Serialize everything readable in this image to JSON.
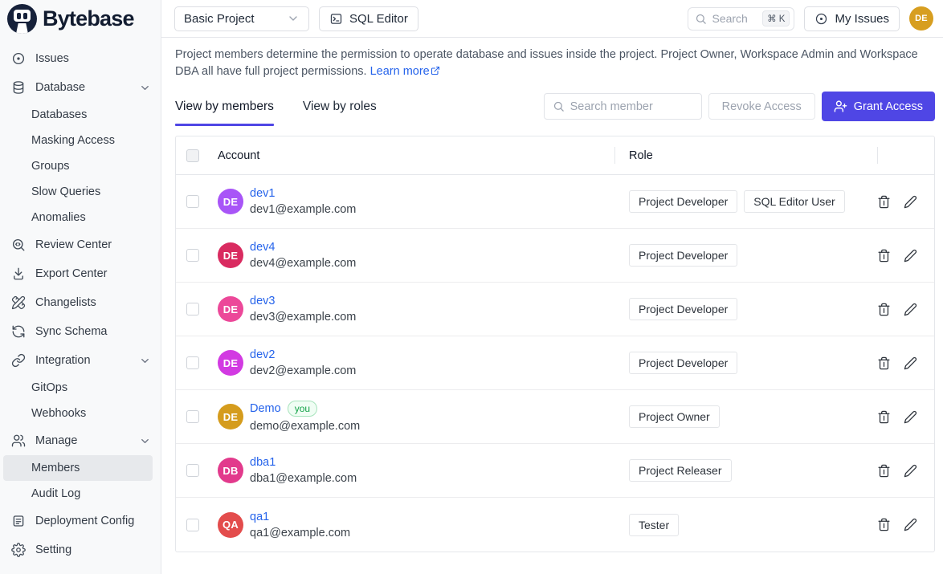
{
  "colors": {
    "accent": "#4f46e5",
    "link": "#2563eb"
  },
  "brand": {
    "name": "Bytebase"
  },
  "topbar": {
    "project_select_value": "Basic Project",
    "sql_editor_label": "SQL Editor",
    "search_placeholder": "Search",
    "search_shortcut": "⌘ K",
    "my_issues_label": "My Issues",
    "avatar_initials": "DE",
    "avatar_color": "#d79e20"
  },
  "sidebar": {
    "items": [
      {
        "label": "Issues",
        "icon": "issues-icon"
      },
      {
        "label": "Database",
        "icon": "database-icon",
        "chevron": true
      },
      {
        "label": "Databases",
        "is_sub": true
      },
      {
        "label": "Masking Access",
        "is_sub": true
      },
      {
        "label": "Groups",
        "is_sub": true
      },
      {
        "label": "Slow Queries",
        "is_sub": true
      },
      {
        "label": "Anomalies",
        "is_sub": true
      },
      {
        "label": "Review Center",
        "icon": "review-center-icon"
      },
      {
        "label": "Export Center",
        "icon": "export-center-icon"
      },
      {
        "label": "Changelists",
        "icon": "changelists-icon"
      },
      {
        "label": "Sync Schema",
        "icon": "sync-schema-icon"
      },
      {
        "label": "Integration",
        "icon": "integration-icon",
        "chevron": true
      },
      {
        "label": "GitOps",
        "is_sub": true
      },
      {
        "label": "Webhooks",
        "is_sub": true
      },
      {
        "label": "Manage",
        "icon": "manage-icon",
        "chevron": true
      },
      {
        "label": "Members",
        "is_sub": true,
        "active": true
      },
      {
        "label": "Audit Log",
        "is_sub": true
      },
      {
        "label": "Deployment Config",
        "icon": "deployment-config-icon"
      },
      {
        "label": "Setting",
        "icon": "setting-icon"
      }
    ]
  },
  "main": {
    "description": "Project members determine the permission to operate database and issues inside the project. Project Owner, Workspace Admin and Workspace DBA all have full project permissions.",
    "learn_more_label": "Learn more",
    "tabs": [
      {
        "label": "View by members",
        "active": true
      },
      {
        "label": "View by roles",
        "active": false
      }
    ],
    "toolbar": {
      "search_placeholder": "Search member",
      "revoke_label": "Revoke Access",
      "grant_label": "Grant Access"
    },
    "table": {
      "columns": [
        "Account",
        "Role"
      ],
      "rows": [
        {
          "name": "dev1",
          "email": "dev1@example.com",
          "initials": "DE",
          "avatar_color": "#a855f7",
          "roles": [
            "Project Developer",
            "SQL Editor User"
          ]
        },
        {
          "name": "dev4",
          "email": "dev4@example.com",
          "initials": "DE",
          "avatar_color": "#d92b60",
          "roles": [
            "Project Developer"
          ]
        },
        {
          "name": "dev3",
          "email": "dev3@example.com",
          "initials": "DE",
          "avatar_color": "#ec4899",
          "roles": [
            "Project Developer"
          ]
        },
        {
          "name": "dev2",
          "email": "dev2@example.com",
          "initials": "DE",
          "avatar_color": "#d23ae2",
          "roles": [
            "Project Developer"
          ]
        },
        {
          "name": "Demo",
          "you_badge": "you",
          "email": "demo@example.com",
          "initials": "DE",
          "avatar_color": "#d59c1d",
          "roles": [
            "Project Owner"
          ]
        },
        {
          "name": "dba1",
          "email": "dba1@example.com",
          "initials": "DB",
          "avatar_color": "#e23a8c",
          "roles": [
            "Project Releaser"
          ]
        },
        {
          "name": "qa1",
          "email": "qa1@example.com",
          "initials": "QA",
          "avatar_color": "#e34c4c",
          "roles": [
            "Tester"
          ]
        }
      ]
    }
  }
}
